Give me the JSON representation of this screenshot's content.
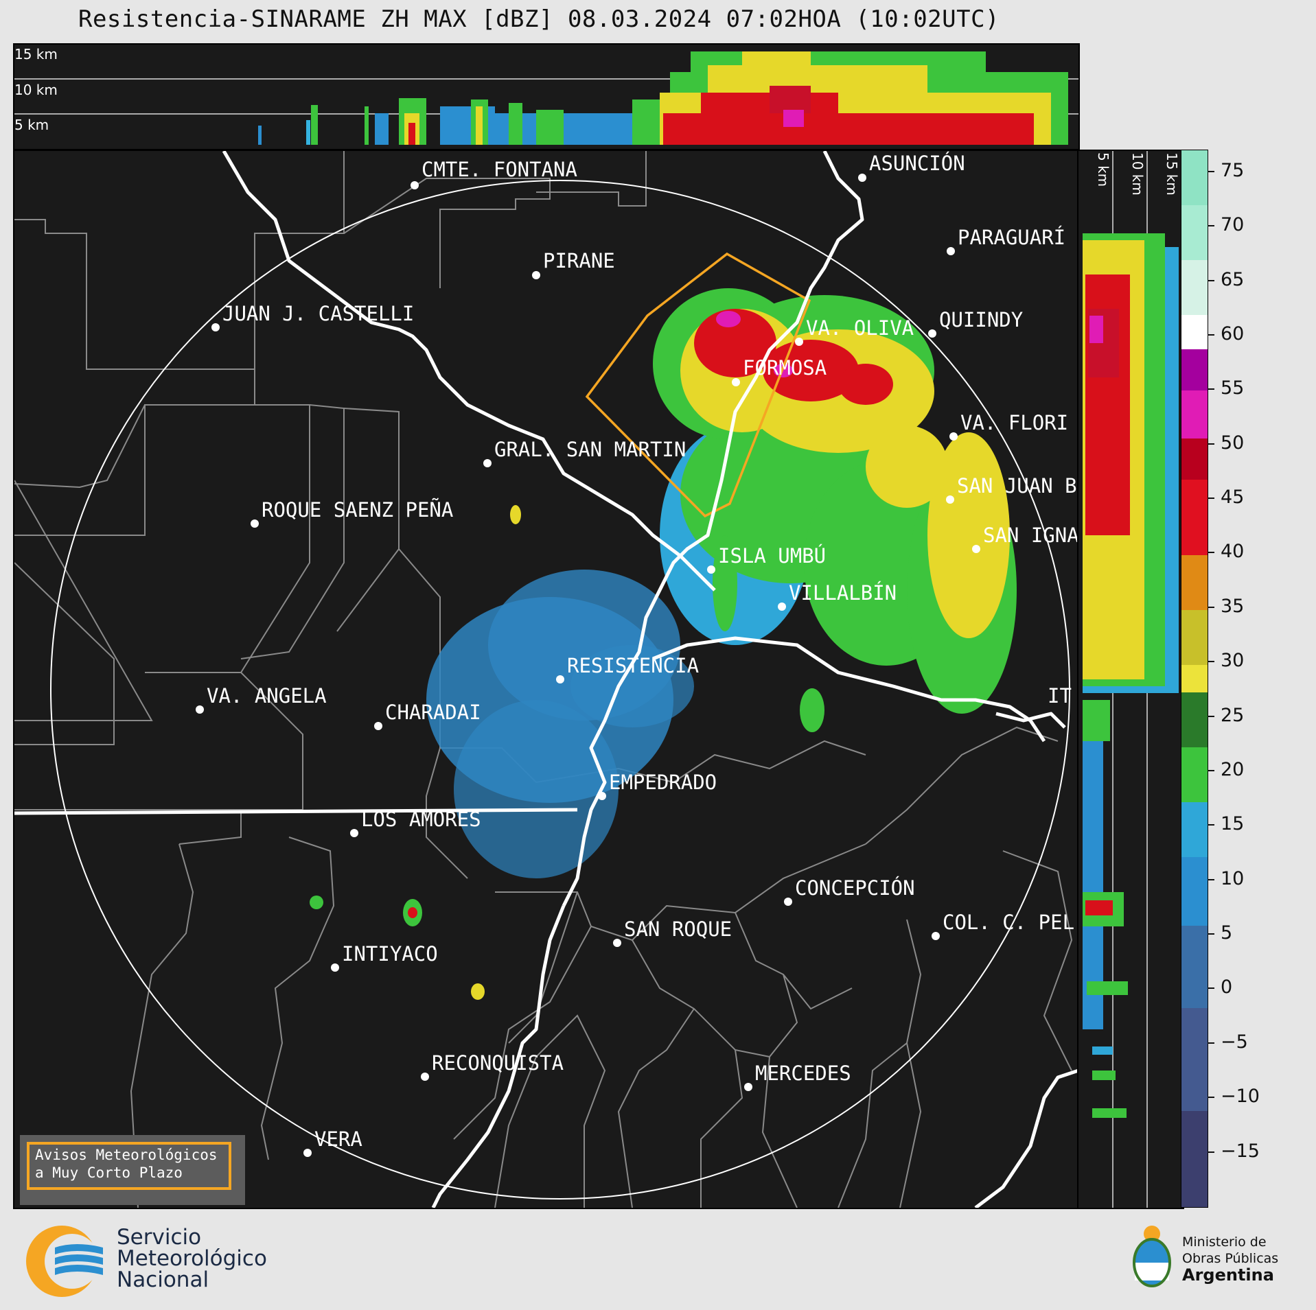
{
  "title": "Resistencia-SINARAME ZH MAX [dBZ] 08.03.2024 07:02HOA (10:02UTC)",
  "top_panel": {
    "altitude_labels": [
      "15 km",
      "10 km",
      "5 km"
    ]
  },
  "side_panel": {
    "altitude_labels": [
      "5 km",
      "10 km",
      "15 km"
    ]
  },
  "map": {
    "cities": [
      {
        "name": "CMTE. FONTANA"
      },
      {
        "name": "ASUNCIÓN"
      },
      {
        "name": "PARAGUARÍ"
      },
      {
        "name": "PIRANE"
      },
      {
        "name": "JUAN J. CASTELLI"
      },
      {
        "name": "VA. OLIVA"
      },
      {
        "name": "QUIINDY"
      },
      {
        "name": "FORMOSA"
      },
      {
        "name": "VA. FLORI"
      },
      {
        "name": "GRAL. SAN MARTIN"
      },
      {
        "name": "SAN JUAN B"
      },
      {
        "name": "ROQUE SAENZ PEÑA"
      },
      {
        "name": "SAN IGNA"
      },
      {
        "name": "ISLA UMBÚ"
      },
      {
        "name": "VILLALBÍN"
      },
      {
        "name": "RESISTENCIA"
      },
      {
        "name": "VA. ANGELA"
      },
      {
        "name": "CHARADAI"
      },
      {
        "name": "IT"
      },
      {
        "name": "EMPEDRADO"
      },
      {
        "name": "LOS AMORES"
      },
      {
        "name": "CONCEPCIÓN"
      },
      {
        "name": "SAN ROQUE"
      },
      {
        "name": "COL. C. PEL"
      },
      {
        "name": "INTIYACO"
      },
      {
        "name": "RECONQUISTA"
      },
      {
        "name": "MERCEDES"
      },
      {
        "name": "VERA"
      }
    ]
  },
  "legend": {
    "line1": "Avisos Meteorológicos",
    "line2": "a Muy Corto Plazo",
    "box_color": "#f5a623"
  },
  "colorbar": {
    "unit": "dBZ",
    "range": [
      -20,
      77
    ],
    "ticks": [
      "75",
      "70",
      "65",
      "60",
      "55",
      "50",
      "45",
      "40",
      "35",
      "30",
      "25",
      "20",
      "15",
      "10",
      "5",
      "0",
      "−5",
      "−10",
      "−15"
    ]
  },
  "footer": {
    "smn_line1": "Servicio",
    "smn_line2": "Meteorológico",
    "smn_line3": "Nacional",
    "ministry_line1": "Ministerio de",
    "ministry_line2": "Obras Públicas",
    "ministry_line3": "Argentina"
  }
}
